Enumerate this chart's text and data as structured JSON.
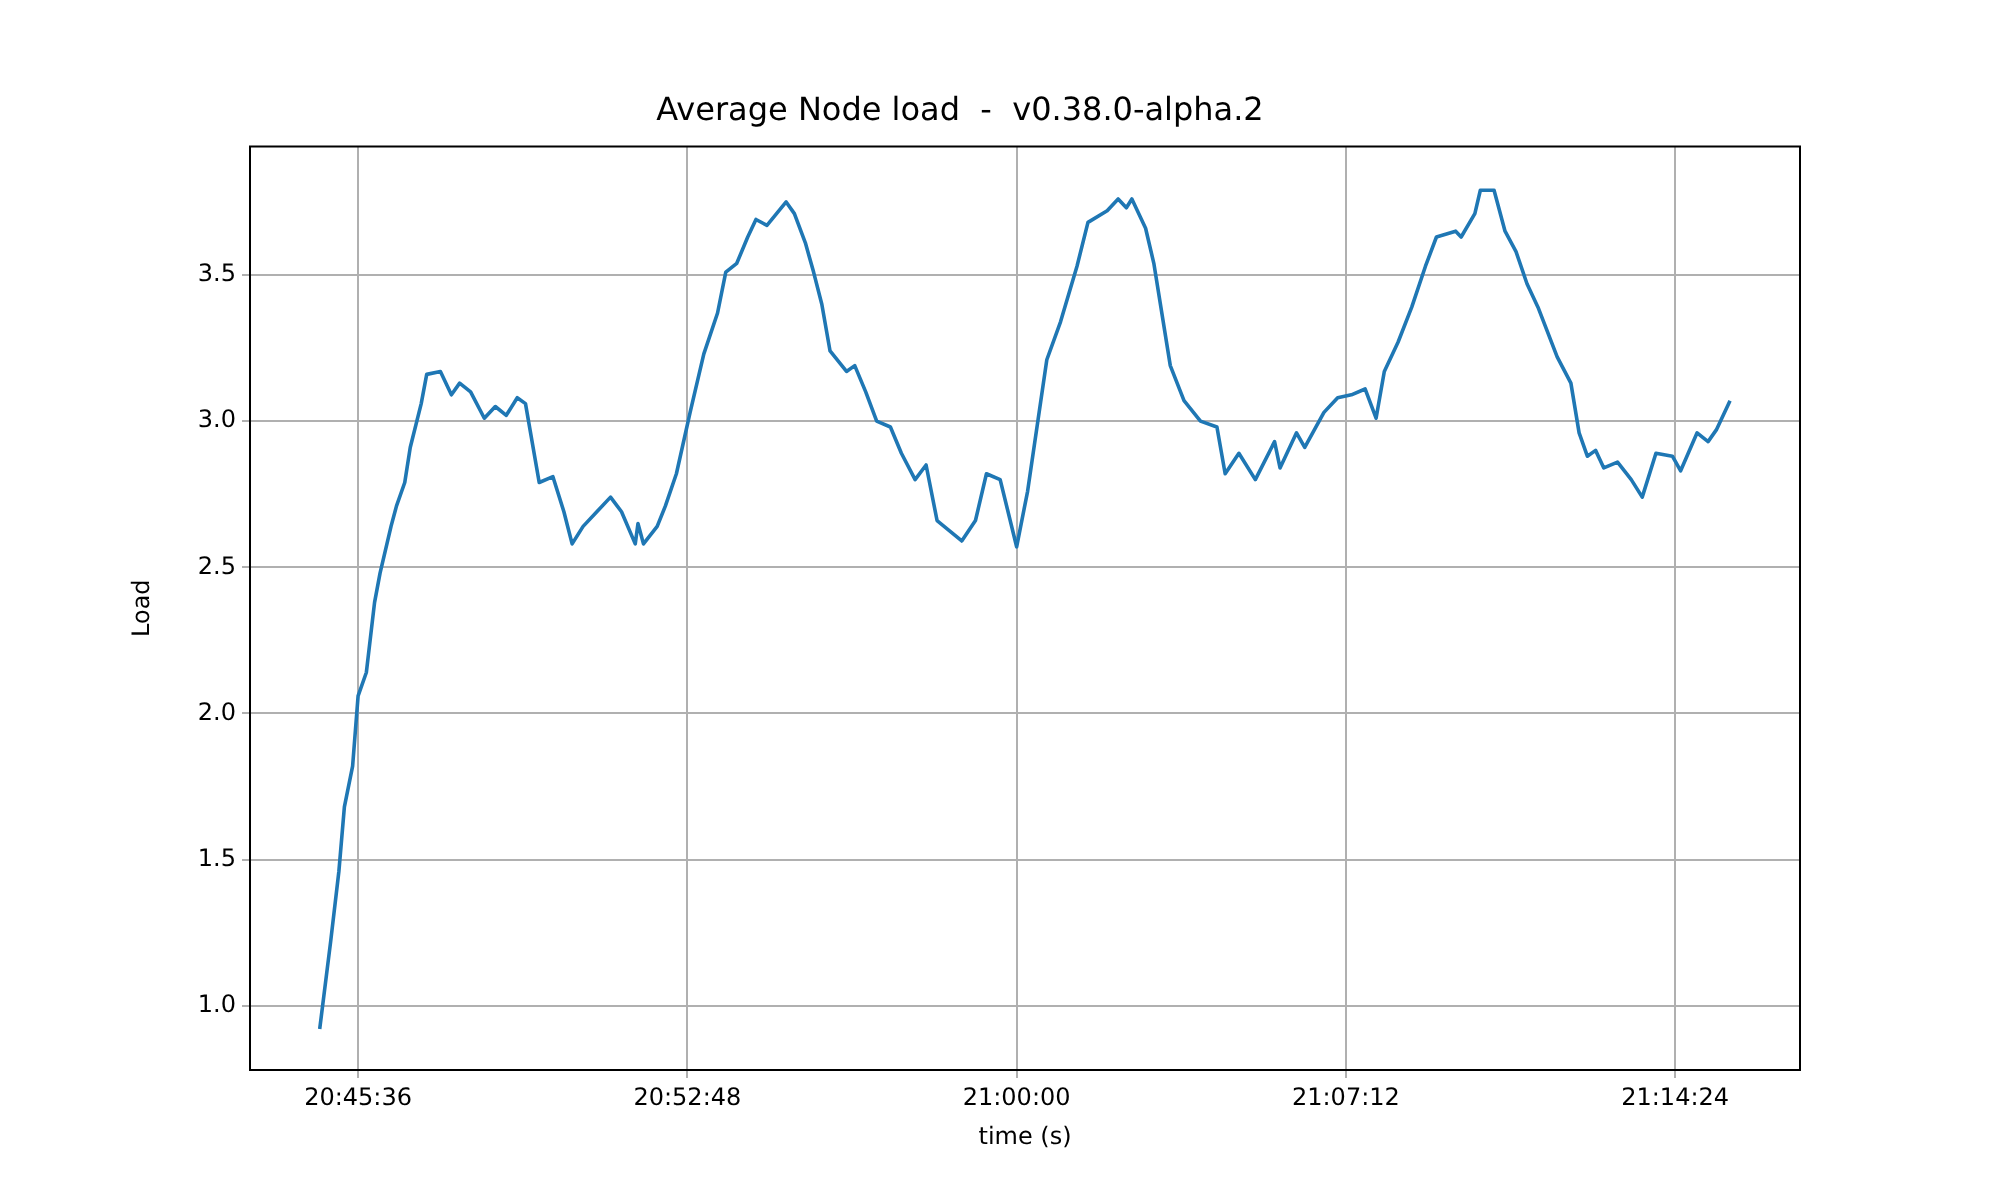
{
  "chart_data": {
    "type": "line",
    "title": "Average Node load  -  v0.38.0-alpha.2",
    "xlabel": "time (s)",
    "ylabel": "Load",
    "x": [
      20.746,
      20.75,
      20.753,
      20.755,
      20.758,
      20.76,
      20.763,
      20.766,
      20.768,
      20.772,
      20.774,
      20.777,
      20.779,
      20.783,
      20.785,
      20.79,
      20.794,
      20.797,
      20.801,
      20.806,
      20.81,
      20.814,
      20.818,
      20.821,
      20.826,
      20.831,
      20.835,
      20.838,
      20.842,
      20.847,
      20.852,
      20.856,
      20.861,
      20.862,
      20.864,
      20.869,
      20.872,
      20.876,
      20.881,
      20.886,
      20.891,
      20.894,
      20.898,
      20.902,
      20.905,
      20.909,
      20.916,
      20.919,
      20.923,
      20.926,
      20.929,
      20.932,
      20.938,
      20.941,
      20.945,
      20.949,
      20.954,
      20.958,
      20.963,
      20.967,
      20.971,
      20.98,
      20.985,
      20.989,
      20.994,
      21.0,
      21.004,
      21.011,
      21.016,
      21.022,
      21.026,
      21.033,
      21.037,
      21.04,
      21.042,
      21.047,
      21.05,
      21.056,
      21.061,
      21.067,
      21.073,
      21.076,
      21.081,
      21.087,
      21.094,
      21.096,
      21.102,
      21.105,
      21.112,
      21.117,
      21.122,
      21.127,
      21.131,
      21.134,
      21.139,
      21.144,
      21.149,
      21.153,
      21.16,
      21.162,
      21.167,
      21.169,
      21.174,
      21.178,
      21.182,
      21.186,
      21.19,
      21.197,
      21.202,
      21.205,
      21.208,
      21.211,
      21.214,
      21.219,
      21.224,
      21.228,
      21.233,
      21.239,
      21.242,
      21.248,
      21.252,
      21.255,
      21.26
    ],
    "series": [
      {
        "color": "#1f77b4",
        "values": [
          0.92,
          1.22,
          1.46,
          1.68,
          1.82,
          2.06,
          2.14,
          2.38,
          2.48,
          2.64,
          2.71,
          2.79,
          2.91,
          3.06,
          3.16,
          3.17,
          3.09,
          3.13,
          3.1,
          3.01,
          3.05,
          3.02,
          3.08,
          3.06,
          2.79,
          2.81,
          2.69,
          2.58,
          2.64,
          2.69,
          2.74,
          2.69,
          2.58,
          2.65,
          2.58,
          2.64,
          2.71,
          2.82,
          3.03,
          3.23,
          3.37,
          3.51,
          3.54,
          3.63,
          3.69,
          3.67,
          3.75,
          3.71,
          3.61,
          3.51,
          3.4,
          3.24,
          3.17,
          3.19,
          3.1,
          3.0,
          2.98,
          2.89,
          2.8,
          2.85,
          2.66,
          2.59,
          2.66,
          2.82,
          2.8,
          2.57,
          2.76,
          3.21,
          3.34,
          3.53,
          3.68,
          3.72,
          3.76,
          3.73,
          3.76,
          3.66,
          3.54,
          3.19,
          3.07,
          3.0,
          2.98,
          2.82,
          2.89,
          2.8,
          2.93,
          2.84,
          2.96,
          2.91,
          3.03,
          3.08,
          3.09,
          3.11,
          3.01,
          3.17,
          3.27,
          3.39,
          3.53,
          3.63,
          3.65,
          3.63,
          3.71,
          3.79,
          3.79,
          3.65,
          3.58,
          3.47,
          3.39,
          3.22,
          3.13,
          2.96,
          2.88,
          2.9,
          2.84,
          2.86,
          2.8,
          2.74,
          2.89,
          2.88,
          2.83,
          2.96,
          2.93,
          2.97,
          3.07
        ]
      }
    ],
    "xlim": [
      20.7206,
      21.2855
    ],
    "ylim": [
      0.78,
      3.94
    ],
    "xticks": [
      {
        "value": 20.76,
        "label": "20:45:36"
      },
      {
        "value": 20.88,
        "label": "20:52:48"
      },
      {
        "value": 21.0,
        "label": "21:00:00"
      },
      {
        "value": 21.12,
        "label": "21:07:12"
      },
      {
        "value": 21.24,
        "label": "21:14:24"
      }
    ],
    "yticks": [
      {
        "value": 1,
        "label": "1.0"
      },
      {
        "value": 1.5,
        "label": "1.5"
      },
      {
        "value": 2,
        "label": "2.0"
      },
      {
        "value": 2.5,
        "label": "2.5"
      },
      {
        "value": 3,
        "label": "3.0"
      },
      {
        "value": 3.5,
        "label": "3.5"
      }
    ],
    "grid": true,
    "line_style": "solid"
  }
}
